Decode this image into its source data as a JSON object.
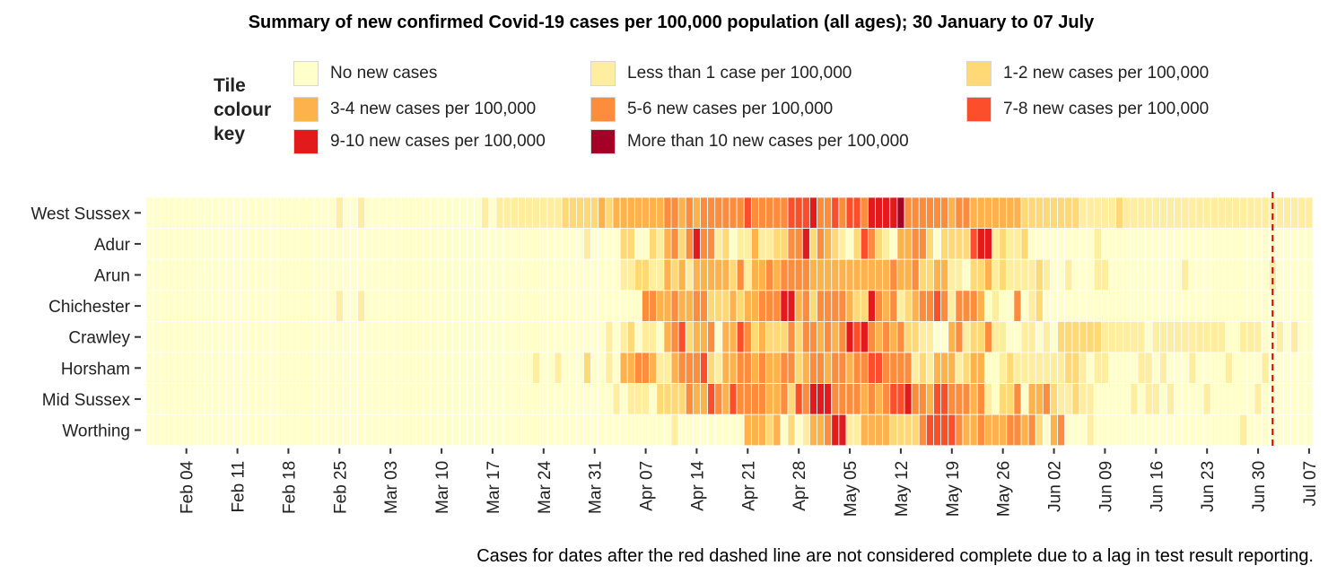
{
  "chart_data": {
    "type": "heatmap",
    "title": "Summary of new confirmed Covid-19 cases per 100,000 population (all ages); 30 January to 07 July",
    "legend": {
      "title_lines": [
        "Tile",
        "colour",
        "key"
      ],
      "placement": "top",
      "items": [
        {
          "label": "No new cases",
          "color": "#ffffcc"
        },
        {
          "label": "Less than 1 case per 100,000",
          "color": "#ffeda0"
        },
        {
          "label": "1-2 new cases per 100,000",
          "color": "#fed976"
        },
        {
          "label": "3-4 new cases per 100,000",
          "color": "#feb24c"
        },
        {
          "label": "5-6 new cases per 100,000",
          "color": "#fd8d3c"
        },
        {
          "label": "7-8 new cases per 100,000",
          "color": "#fc4e2a"
        },
        {
          "label": "9-10 new cases per 100,000",
          "color": "#e31a1c"
        },
        {
          "label": "More than 10 new cases per 100,000",
          "color": "#a50026"
        }
      ]
    },
    "x_range": [
      "2020-01-30",
      "2020-07-07"
    ],
    "x_ticks": [
      "Feb 04",
      "Feb 11",
      "Feb 18",
      "Feb 25",
      "Mar 03",
      "Mar 10",
      "Mar 17",
      "Mar 24",
      "Mar 31",
      "Apr 07",
      "Apr 14",
      "Apr 21",
      "Apr 28",
      "May 05",
      "May 12",
      "May 19",
      "May 26",
      "Jun 02",
      "Jun 09",
      "Jun 16",
      "Jun 23",
      "Jun 30",
      "Jul 07"
    ],
    "y_categories": [
      "West Sussex",
      "Adur",
      "Arun",
      "Chichester",
      "Crawley",
      "Horsham",
      "Mid Sussex",
      "Worthing"
    ],
    "complete_through_line": {
      "date": "2020-07-02",
      "style": "red dashed",
      "color": "#cc0000"
    },
    "value_encoding": "category index 0-7 into legend.items, one value per day from 30 January to 07 July",
    "series": [
      {
        "name": "West Sussex",
        "values": "000000000000000000000000001001000000000000000010111111111222223233333334434344444454444455564454554666674444443443333333222222221111121111111111111111111111111111111111011"
      },
      {
        "name": "Adur",
        "values": "000000000000000000000000000000000000000000000000000000000000100002200213424644120113112244624321025421033442022225661211200000000010000000000000000000000000000000000001"
      },
      {
        "name": "Arun",
        "values": "000000000000000000000000000000000000000000000000000000000000000001122113231333332413343444433333333333433422331102231211112100100011000000000010000000000010000000000001"
      },
      {
        "name": "Chichester",
        "values": "000000000000000000000000001001000000000000000000000000000000000000004433433442223233444663424444322643412344541444301004012000000000000000000000000000000000000000000001"
      },
      {
        "name": "Crawley",
        "values": "000000000000000000000000000000000000000000000000000000000000000101201103452334033542322242443434656434342211003412241100110102222221111110111111111100111001010011011101"
      },
      {
        "name": "Horsham",
        "values": "000000000000000000000000000000000000000000000000000001001000200103344311344452133443433442344344344554444121333123300121111111221011000011010001000010000100000000101"
      },
      {
        "name": "Mid Sussex",
        "values": "000000000000000000000000000000000000000000000000000000000000000010111022224335435444433425466644443434556443554443410224033421121100000101101000010000001000000000001"
      },
      {
        "name": "Worthing",
        "values": "000000000000000000000000000000000000000000000000000000000000000000000000100000000033323020133466113333222245555433433344342034000100000000000000000000100000000000001"
      }
    ]
  },
  "footnote": "Cases for dates after the red dashed line are not considered complete due to a lag in test result reporting."
}
